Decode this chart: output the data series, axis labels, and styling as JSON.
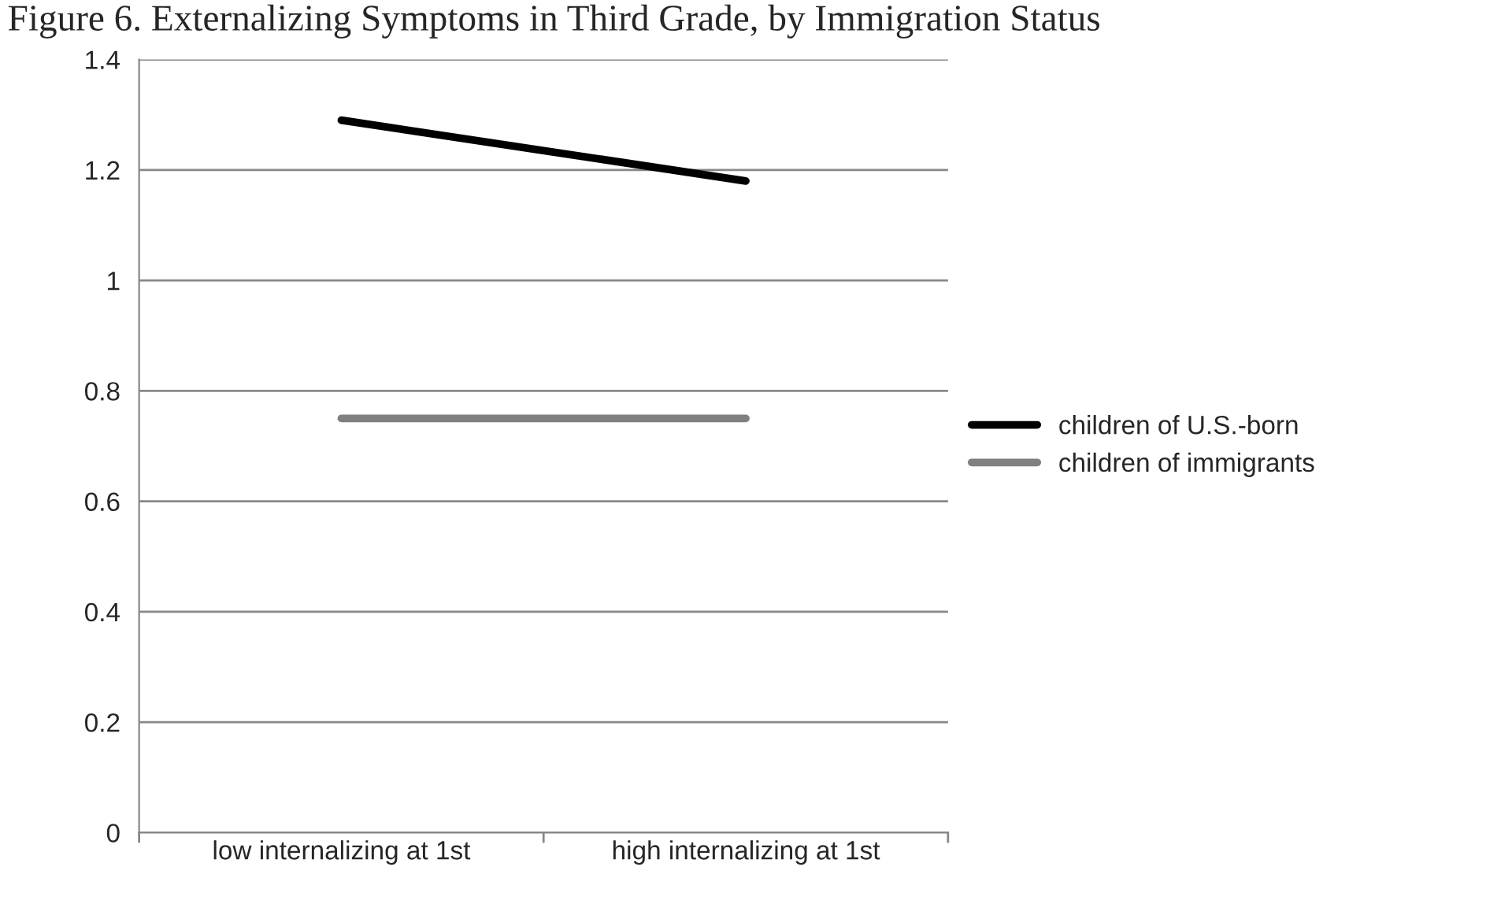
{
  "chart_data": {
    "type": "line",
    "title": "Figure 6. Externalizing Symptoms in Third Grade, by Immigration Status",
    "categories": [
      "low internalizing at 1st",
      "high internalizing at 1st"
    ],
    "series": [
      {
        "name": "children of U.S.-born",
        "color": "#000000",
        "values": [
          1.29,
          1.18
        ]
      },
      {
        "name": "children of immigrants",
        "color": "#808080",
        "values": [
          0.75,
          0.75
        ]
      }
    ],
    "ylim": [
      0,
      1.4
    ],
    "yticks": [
      0,
      0.2,
      0.4,
      0.6,
      0.8,
      1,
      1.2,
      1.4
    ],
    "grid": "y",
    "legend": "right",
    "marker": "none",
    "line_style": "solid"
  }
}
